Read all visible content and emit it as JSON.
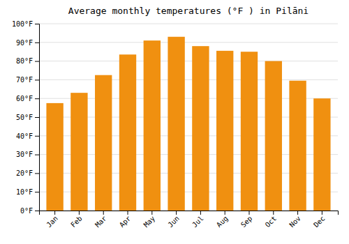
{
  "chart_data": {
    "type": "bar",
    "title": "Average monthly temperatures (°F ) in Pilāni",
    "categories": [
      "Jan",
      "Feb",
      "Mar",
      "Apr",
      "May",
      "Jun",
      "Jul",
      "Aug",
      "Sep",
      "Oct",
      "Nov",
      "Dec"
    ],
    "values": [
      57.5,
      63,
      72.5,
      83.5,
      91,
      93,
      88,
      85.5,
      85,
      80,
      69.5,
      60
    ],
    "color": "#F09010",
    "ylim": [
      0,
      100
    ],
    "yticks": [
      {
        "value": 0,
        "label": "0°F"
      },
      {
        "value": 10,
        "label": "10°F"
      },
      {
        "value": 20,
        "label": "20°F"
      },
      {
        "value": 30,
        "label": "30°F"
      },
      {
        "value": 40,
        "label": "40°F"
      },
      {
        "value": 50,
        "label": "50°F"
      },
      {
        "value": 60,
        "label": "60°F"
      },
      {
        "value": 70,
        "label": "70°F"
      },
      {
        "value": 80,
        "label": "80°F"
      },
      {
        "value": 90,
        "label": "90°F"
      },
      {
        "value": 100,
        "label": "100°F"
      }
    ],
    "grid": true
  }
}
